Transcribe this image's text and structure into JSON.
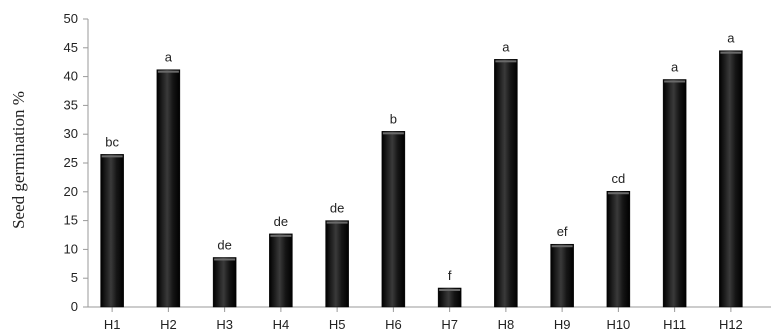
{
  "chart_data": {
    "type": "bar",
    "title": "",
    "xlabel": "",
    "ylabel": "Seed germination %",
    "ylim": [
      0,
      50
    ],
    "yticks": [
      0,
      5,
      10,
      15,
      20,
      25,
      30,
      35,
      40,
      45,
      50
    ],
    "grid": false,
    "legend": "none",
    "categories": [
      "H1",
      "H2",
      "H3",
      "H4",
      "H5",
      "H6",
      "H7",
      "H8",
      "H9",
      "H10",
      "H11",
      "H12"
    ],
    "values": [
      26.5,
      41.2,
      8.6,
      12.7,
      15.0,
      30.5,
      3.3,
      43.0,
      10.9,
      20.1,
      39.5,
      44.5
    ],
    "data_labels": [
      "bc",
      "a",
      "de",
      "de",
      "de",
      "b",
      "f",
      "a",
      "ef",
      "cd",
      "a",
      "a"
    ],
    "bar_color": "#0a0a0a"
  }
}
